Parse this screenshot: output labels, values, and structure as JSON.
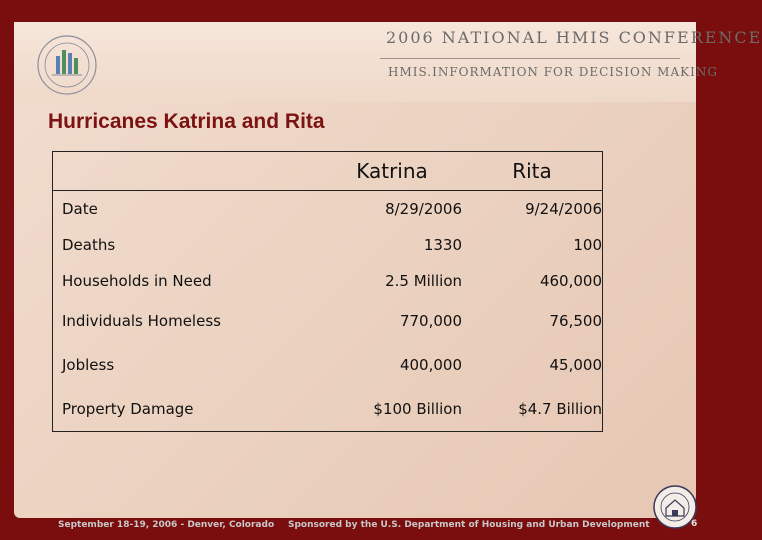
{
  "header": {
    "conference_title": "2006 NATIONAL HMIS CONFERENCE",
    "conference_subtitle": "HMIS.INFORMATION FOR DECISION MAKING"
  },
  "slide": {
    "title": "Hurricanes Katrina and Rita"
  },
  "table": {
    "columns": [
      "",
      "Katrina",
      "Rita"
    ],
    "rows": [
      {
        "label": "Date",
        "katrina": "8/29/2006",
        "rita": "9/24/2006"
      },
      {
        "label": "Deaths",
        "katrina": "1330",
        "rita": "100"
      },
      {
        "label": "Households in Need",
        "katrina": "2.5 Million",
        "rita": "460,000"
      },
      {
        "label": "Individuals Homeless",
        "katrina": "770,000",
        "rita": "76,500"
      },
      {
        "label": "Jobless",
        "katrina": "400,000",
        "rita": "45,000"
      },
      {
        "label": "Property Damage",
        "katrina": "$100 Billion",
        "rita": "$4.7 Billion"
      }
    ]
  },
  "footer": {
    "left": "September 18-19, 2006 - Denver, Colorado",
    "right": "Sponsored by the U.S. Department of Housing and Urban Development",
    "page_number": "6"
  },
  "colors": {
    "frame": "#7a0e0e",
    "title": "#7c1212",
    "slide_bg": "#ecd3c2"
  }
}
